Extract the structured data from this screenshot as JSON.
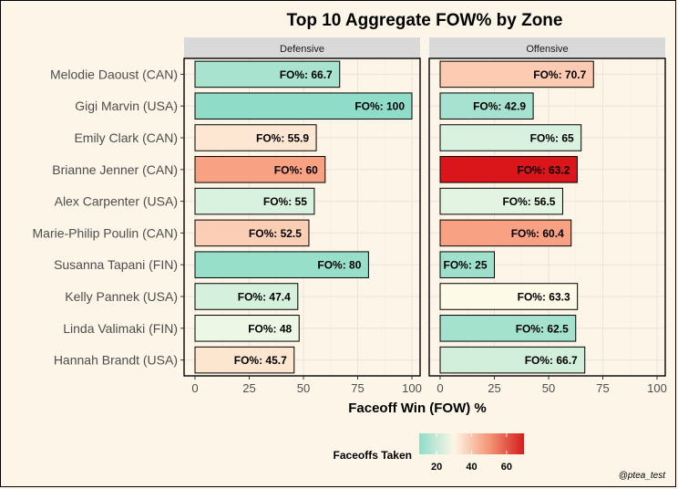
{
  "chart_data": {
    "type": "bar",
    "title": "Top 10 Aggregate FOW% by Zone",
    "xlabel": "Faceoff Win (FOW) %",
    "ylabel": "",
    "xlim": [
      0,
      100
    ],
    "x_ticks": [
      0,
      25,
      50,
      75,
      100
    ],
    "grid": true,
    "bar_label_prefix": "FO%:",
    "categories": [
      "Melodie Daoust (CAN)",
      "Gigi Marvin (USA)",
      "Emily Clark (CAN)",
      "Brianne Jenner (CAN)",
      "Alex Carpenter (USA)",
      "Marie-Philip Poulin (CAN)",
      "Susanna Tapani (FIN)",
      "Kelly Pannek (USA)",
      "Linda Valimaki (FIN)",
      "Hannah Brandt (USA)"
    ],
    "panels": [
      {
        "name": "Defensive",
        "values": [
          66.7,
          100,
          55.9,
          60,
          55,
          52.5,
          80,
          47.4,
          48,
          45.7
        ],
        "labels": [
          "66.7",
          "100",
          "55.9",
          "60",
          "55",
          "52.5",
          "80",
          "47.4",
          "48",
          "45.7"
        ],
        "fills": [
          "#a7e3cf",
          "#8fdcc8",
          "#fde7d2",
          "#f8a283",
          "#d9f1df",
          "#fbceb5",
          "#98dfca",
          "#d5f0dd",
          "#ecf7e6",
          "#fde6d0"
        ]
      },
      {
        "name": "Offensive",
        "values": [
          70.7,
          42.9,
          65,
          63.2,
          56.5,
          60.4,
          25,
          63.3,
          62.5,
          66.7
        ],
        "labels": [
          "70.7",
          "42.9",
          "65",
          "63.2",
          "56.5",
          "60.4",
          "25",
          "63.3",
          "62.5",
          "66.7"
        ],
        "fills": [
          "#fccbb1",
          "#a6e2cf",
          "#d9f1df",
          "#db161b",
          "#e3f4e3",
          "#f8a283",
          "#9ee0cc",
          "#fefae8",
          "#a4e2ce",
          "#d2efdc"
        ]
      }
    ],
    "legend": {
      "title": "Faceoffs Taken",
      "ticks": [
        20,
        40,
        60
      ],
      "range": [
        10,
        70
      ],
      "colors": [
        "#8fdcc8",
        "#fdf6e5",
        "#f39678",
        "#d51c1c"
      ],
      "placement": "bottom"
    },
    "caption": "@ptea_test"
  }
}
